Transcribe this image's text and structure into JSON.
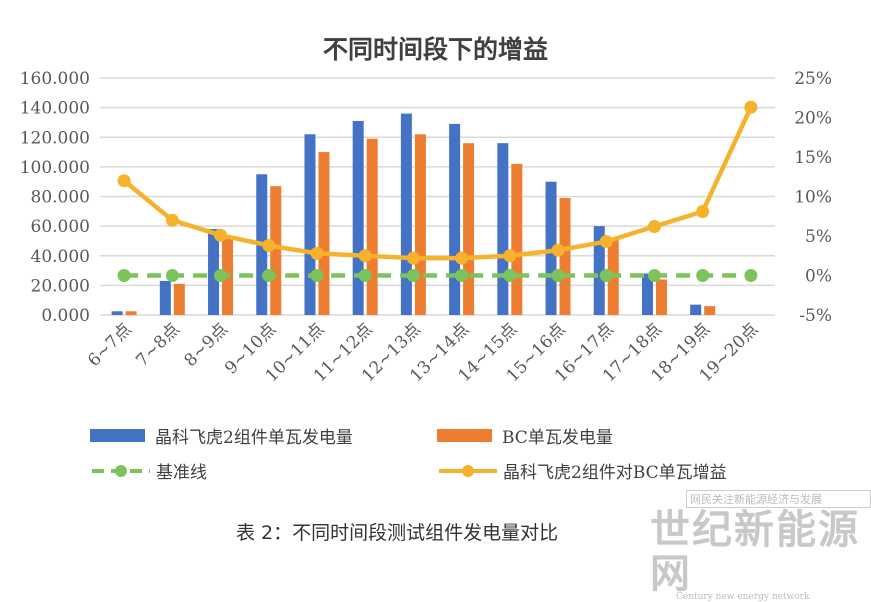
{
  "chart_data": {
    "type": "bar+line",
    "title": "不同时间段下的增益",
    "categories": [
      "6~7点",
      "7~8点",
      "8~9点",
      "9~10点",
      "10~11点",
      "11~12点",
      "12~13点",
      "13~14点",
      "14~15点",
      "15~16点",
      "16~17点",
      "17~18点",
      "18~19点",
      "19~20点"
    ],
    "y_left": {
      "ylim": [
        0,
        160
      ],
      "ticks": [
        "0.000",
        "20.000",
        "40.000",
        "60.000",
        "80.000",
        "100.000",
        "120.000",
        "140.000",
        "160.000"
      ]
    },
    "y_right": {
      "ylim": [
        -5,
        25
      ],
      "ticks": [
        "-5%",
        "0%",
        "5%",
        "10%",
        "15%",
        "20%",
        "25%"
      ]
    },
    "grid": true,
    "legend_placement": "bottom",
    "series": [
      {
        "name": "晶科飞虎2组件单瓦发电量",
        "type": "bar",
        "axis": "left",
        "color": "#4472C4",
        "values": [
          2.5,
          23,
          58,
          95,
          122,
          131,
          136,
          129,
          116,
          90,
          60,
          28,
          7,
          0
        ]
      },
      {
        "name": "BC单瓦发电量",
        "type": "bar",
        "axis": "left",
        "color": "#ED7D31",
        "values": [
          2.5,
          21,
          53,
          87,
          110,
          119,
          122,
          116,
          102,
          79,
          52,
          24,
          6,
          0
        ]
      },
      {
        "name": "基准线",
        "type": "line",
        "axis": "right",
        "color": "#7DC35B",
        "dashed": true,
        "values": [
          0,
          0,
          0,
          0,
          0,
          0,
          0,
          0,
          0,
          0,
          0,
          0,
          0,
          0
        ]
      },
      {
        "name": "晶科飞虎2组件对BC单瓦增益",
        "type": "line",
        "axis": "right",
        "color": "#F6B22D",
        "values": [
          12.0,
          7.0,
          5.1,
          3.8,
          2.8,
          2.5,
          2.2,
          2.2,
          2.5,
          3.2,
          4.3,
          6.2,
          8.1,
          21.3
        ]
      }
    ]
  },
  "caption": "表 2：不同时间段测试组件发电量对比",
  "watermark": {
    "top": "网民关注新能源经济与发展",
    "big": "世纪新能源网",
    "sub": "Century new energy network"
  }
}
